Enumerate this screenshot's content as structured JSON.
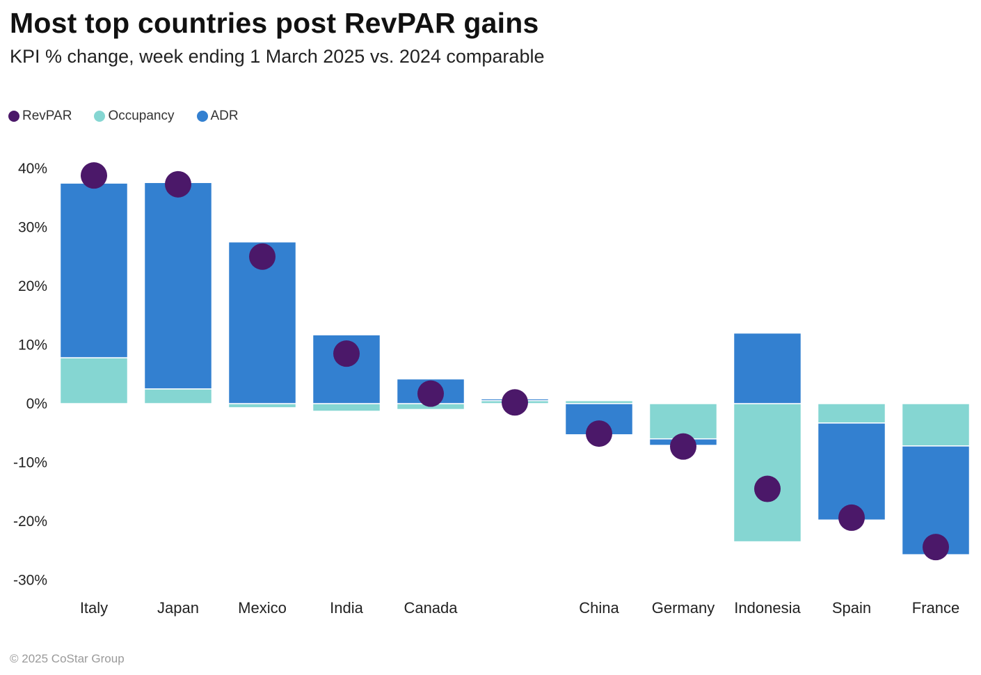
{
  "title": "Most top countries post RevPAR gains",
  "subtitle": "KPI % change, week ending 1 March 2025 vs. 2024 comparable",
  "footer": "© 2025 CoStar Group",
  "colors": {
    "revpar": "#4b1869",
    "occupancy": "#85d6d2",
    "adr": "#3380d0"
  },
  "legend": [
    {
      "key": "revpar",
      "label": "RevPAR"
    },
    {
      "key": "occupancy",
      "label": "Occupancy"
    },
    {
      "key": "adr",
      "label": "ADR"
    }
  ],
  "chart_data": {
    "type": "bar",
    "stacked": true,
    "title": "Most top countries post RevPAR gains",
    "subtitle": "KPI % change, week ending 1 March 2025 vs. 2024 comparable",
    "categories": [
      "Italy",
      "Japan",
      "Mexico",
      "India",
      "Canada",
      "",
      "China",
      "Germany",
      "Indonesia",
      "Spain",
      "France"
    ],
    "series": [
      {
        "name": "Occupancy",
        "type": "bar",
        "values": [
          7.8,
          2.5,
          -0.7,
          -1.3,
          -1.0,
          0.5,
          0.5,
          -6.0,
          -23.5,
          -3.3,
          -7.2
        ]
      },
      {
        "name": "ADR",
        "type": "bar",
        "values": [
          29.7,
          35.1,
          27.5,
          11.7,
          4.2,
          0.3,
          -5.3,
          -1.1,
          12.0,
          -16.5,
          -18.5
        ]
      },
      {
        "name": "RevPAR",
        "type": "dot",
        "values": [
          38.8,
          37.3,
          25.0,
          8.5,
          1.7,
          0.2,
          -5.1,
          -7.3,
          -14.5,
          -19.4,
          -24.4
        ]
      }
    ],
    "ylim": [
      -30,
      40
    ],
    "yticks": [
      40,
      30,
      20,
      10,
      0,
      -10,
      -20,
      -30
    ],
    "ytick_labels": [
      "40%",
      "30%",
      "20%",
      "10%",
      "0%",
      "-10%",
      "-20%",
      "-30%"
    ],
    "xlabel": "",
    "ylabel": "",
    "grid": false,
    "legend_position": "top-left"
  }
}
